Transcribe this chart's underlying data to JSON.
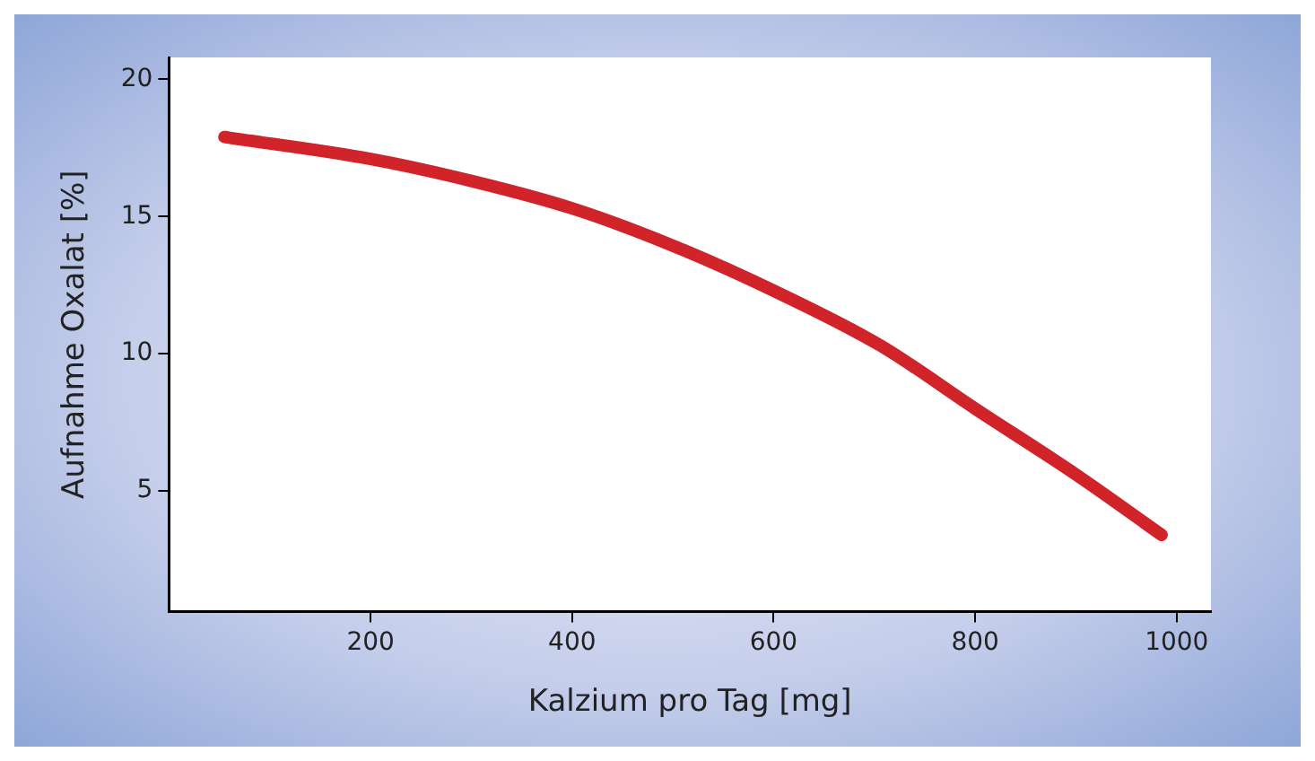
{
  "chart_data": {
    "type": "line",
    "xlabel": "Kalzium pro Tag [mg]",
    "ylabel": "Aufnahme Oxalat [%]",
    "xlim": [
      0,
      1034
    ],
    "ylim": [
      0.6,
      20.8
    ],
    "xticks": [
      200,
      400,
      600,
      800,
      1000
    ],
    "yticks": [
      5,
      10,
      15,
      20
    ],
    "grid": false,
    "legend": false,
    "marker": "none",
    "line_style": "solid",
    "series": [
      {
        "color": "#d0232a",
        "x": [
          55,
          200,
          300,
          400,
          496,
          600,
          706,
          800,
          900,
          985
        ],
        "values": [
          17.9,
          17.1,
          16.3,
          15.3,
          14.0,
          12.3,
          10.3,
          8.0,
          5.6,
          3.4
        ]
      }
    ]
  }
}
